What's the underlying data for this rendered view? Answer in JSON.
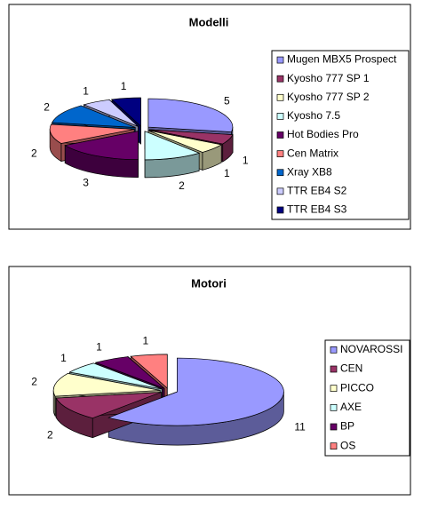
{
  "chart_data": [
    {
      "type": "pie",
      "title": "Modelli",
      "legend": "right",
      "categories": [
        "Mugen MBX5 Prospect",
        "Kyosho 777 SP 1",
        "Kyosho 777 SP 2",
        "Kyosho 7.5",
        "Hot Bodies Pro",
        "Cen Matrix",
        "Xray XB8",
        "TTR EB4 S2",
        "TTR EB4 S3"
      ],
      "values": [
        5,
        1,
        1,
        2,
        3,
        2,
        2,
        1,
        1
      ],
      "colors": [
        "#9999ff",
        "#993366",
        "#ffffcc",
        "#ccffff",
        "#660066",
        "#ff8080",
        "#0066cc",
        "#ccccff",
        "#000080"
      ]
    },
    {
      "type": "pie",
      "title": "Motori",
      "legend": "right",
      "categories": [
        "NOVAROSSI",
        "CEN",
        "PICCO",
        "AXE",
        "BP",
        "OS"
      ],
      "values": [
        11,
        2,
        2,
        1,
        1,
        1
      ],
      "colors": [
        "#9999ff",
        "#993366",
        "#ffffcc",
        "#ccffff",
        "#660066",
        "#ff8080"
      ]
    }
  ]
}
